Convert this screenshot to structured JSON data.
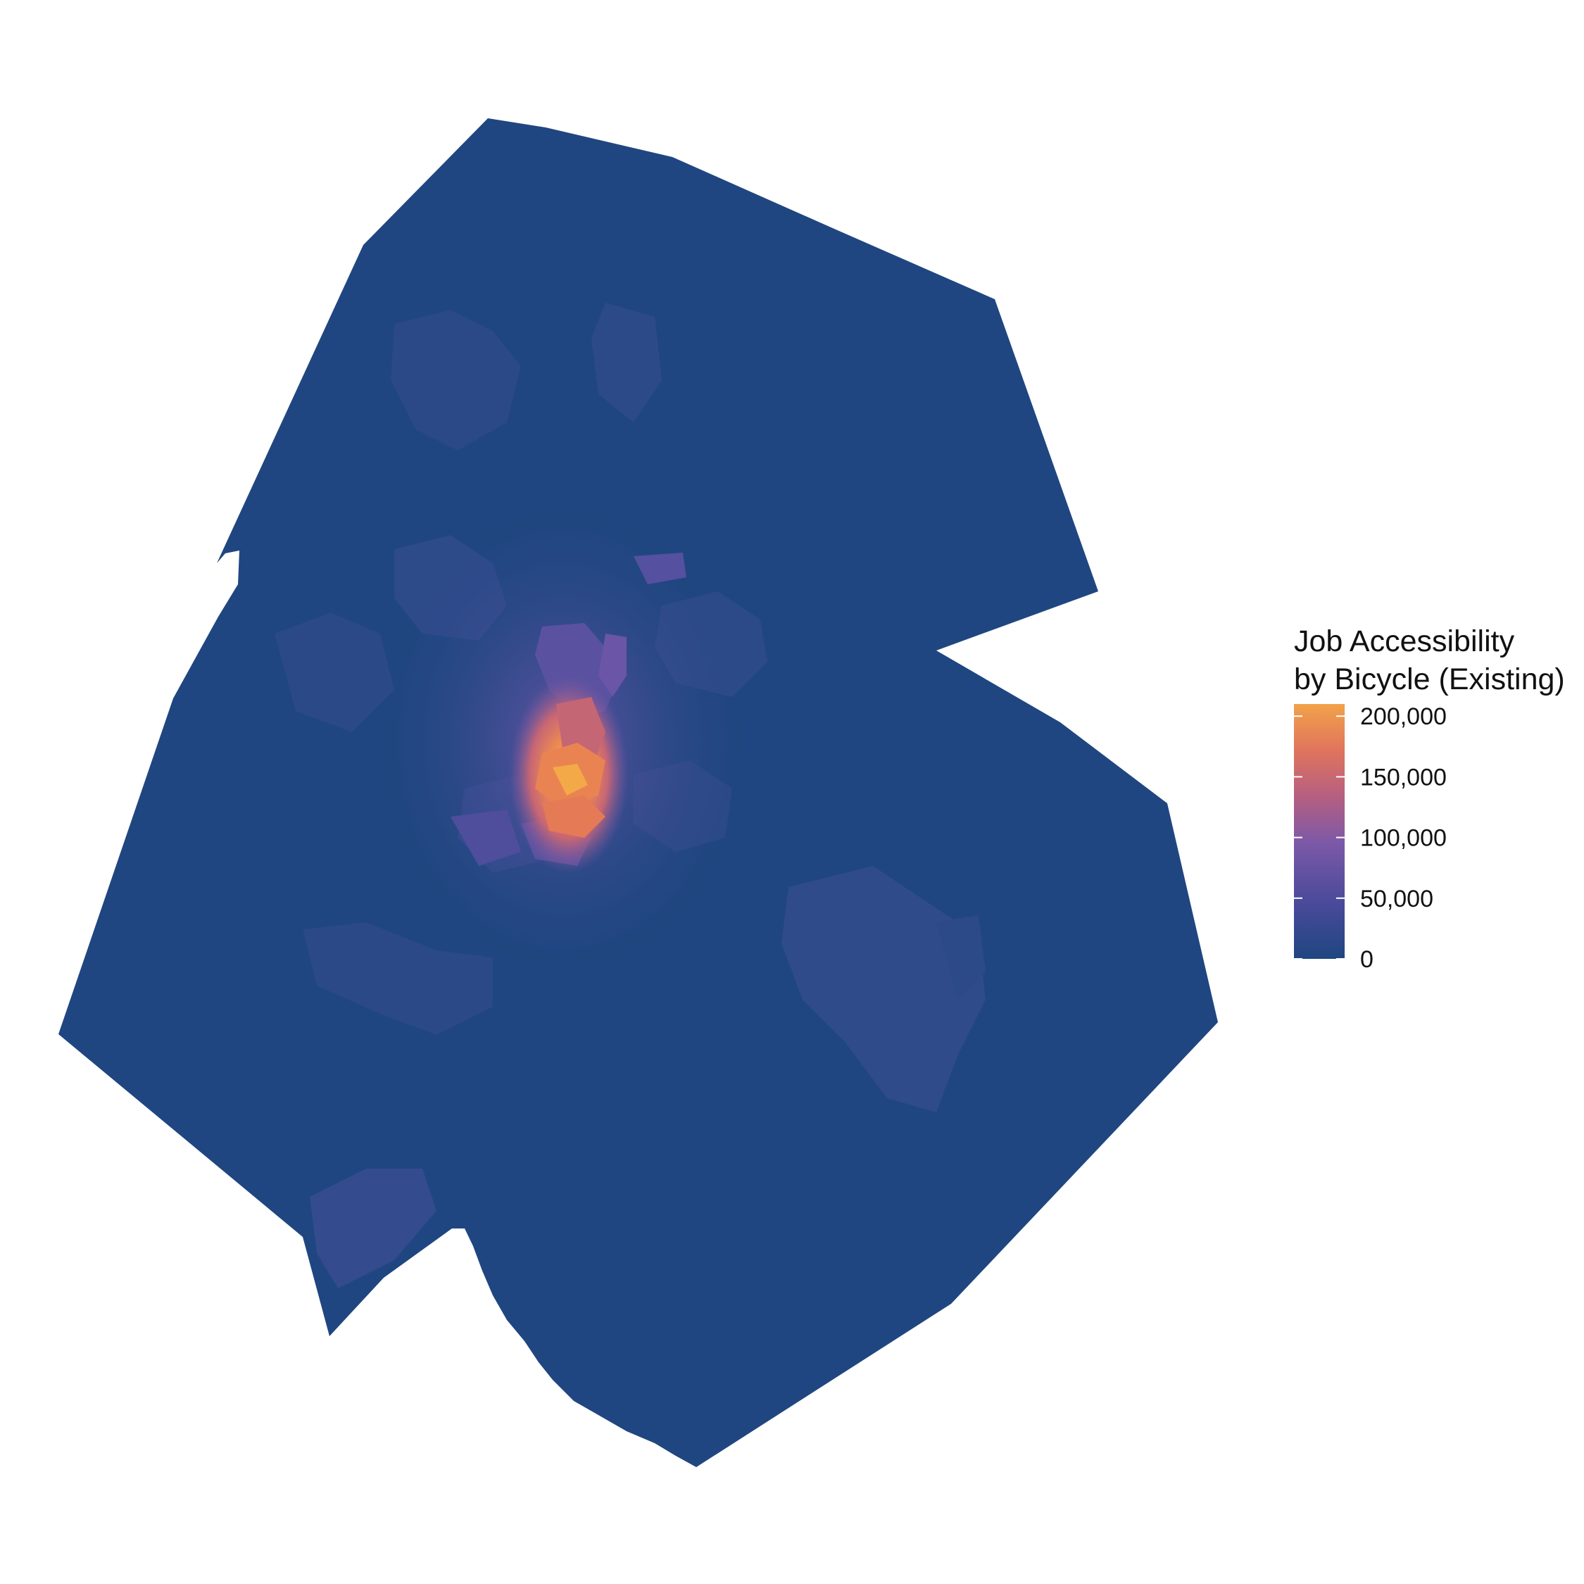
{
  "legend": {
    "title_line1": "Job Accessibility",
    "title_line2": "by Bicycle (Existing)",
    "min": 0,
    "max": 210000,
    "ticks": [
      {
        "value": 200000,
        "label": "200,000"
      },
      {
        "value": 150000,
        "label": "150,000"
      },
      {
        "value": 100000,
        "label": "100,000"
      },
      {
        "value": 50000,
        "label": "50,000"
      },
      {
        "value": 0,
        "label": "0"
      }
    ],
    "gradient": [
      "#1f4680",
      "#4a4a9a",
      "#7b58a8",
      "#b9607e",
      "#e0755c",
      "#f2a24a"
    ]
  },
  "map": {
    "background_color": "#1f4680"
  }
}
